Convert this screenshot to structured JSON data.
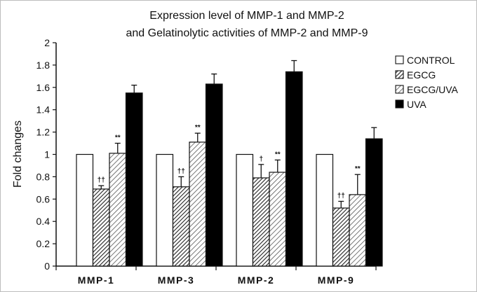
{
  "chart_data": {
    "type": "bar",
    "title": "Expression level of MMP-1 and MMP-2",
    "subtitle": "and Gelatinolytic activities of MMP-2 and MMP-9",
    "xlabel": "",
    "ylabel": "Fold changes",
    "ylim": [
      0,
      2
    ],
    "yticks": [
      "0",
      "0.2",
      "0.4",
      "0.6",
      "0.8",
      "1",
      "1.2",
      "1.4",
      "1.6",
      "1.8",
      "2"
    ],
    "grid": false,
    "legend_position": "top-right",
    "categories": [
      "MMP-1",
      "MMP-3",
      "MMP-2",
      "MMP-9"
    ],
    "series": [
      {
        "name": "CONTROL",
        "pattern": "white",
        "values": [
          1.0,
          1.0,
          1.0,
          1.0
        ],
        "errors": [
          0,
          0,
          0,
          0
        ],
        "annotations": [
          "",
          "",
          "",
          ""
        ]
      },
      {
        "name": "EGCG",
        "pattern": "dense-hatch",
        "values": [
          0.69,
          0.71,
          0.79,
          0.52
        ],
        "errors": [
          0.03,
          0.09,
          0.12,
          0.06
        ],
        "annotations": [
          "††",
          "††",
          "†",
          "††"
        ]
      },
      {
        "name": "EGCG/UVA",
        "pattern": "light-hatch",
        "values": [
          1.01,
          1.11,
          0.84,
          0.64
        ],
        "errors": [
          0.09,
          0.08,
          0.11,
          0.18
        ],
        "annotations": [
          "**",
          "**",
          "**",
          "**"
        ]
      },
      {
        "name": "UVA",
        "pattern": "black",
        "values": [
          1.55,
          1.63,
          1.74,
          1.14
        ],
        "errors": [
          0.07,
          0.09,
          0.1,
          0.1
        ],
        "annotations": [
          "",
          "",
          "",
          ""
        ]
      }
    ]
  }
}
